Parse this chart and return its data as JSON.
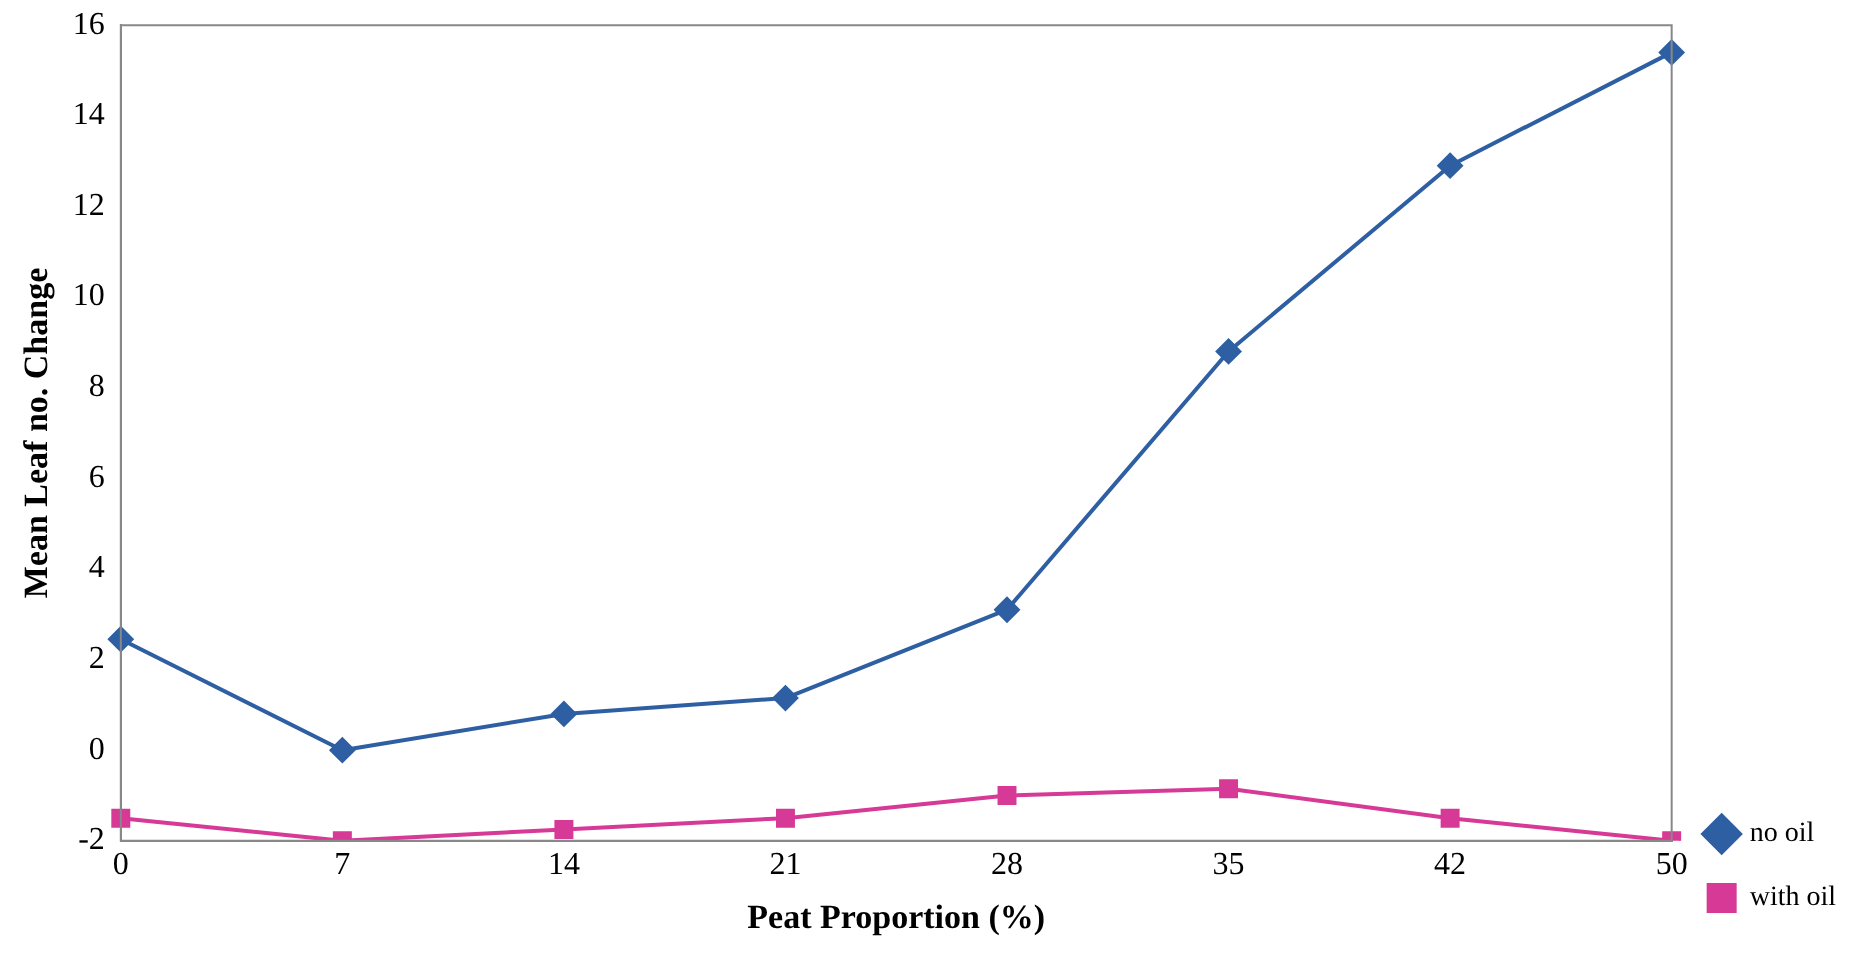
{
  "chart_data": {
    "type": "line",
    "xlabel": "Peat Proportion (%)",
    "ylabel": "Mean Leaf no. Change",
    "categories": [
      "0",
      "7",
      "14",
      "21",
      "28",
      "35",
      "42",
      "50"
    ],
    "series": [
      {
        "name": "no oil",
        "color": "#2e5fa3",
        "marker": "diamond",
        "values": [
          2.45,
          0,
          0.8,
          1.15,
          3.1,
          8.8,
          12.9,
          15.4
        ]
      },
      {
        "name": "with oil",
        "color": "#d63a96",
        "marker": "square",
        "values": [
          -1.5,
          -2,
          -1.75,
          -1.5,
          -1,
          -0.85,
          -1.5,
          -2
        ]
      }
    ],
    "ylim": [
      -2,
      16
    ],
    "yticks": [
      -2,
      0,
      2,
      4,
      6,
      8,
      10,
      12,
      14,
      16
    ],
    "grid": false,
    "legend": "bottom right",
    "line_style": "solid"
  }
}
